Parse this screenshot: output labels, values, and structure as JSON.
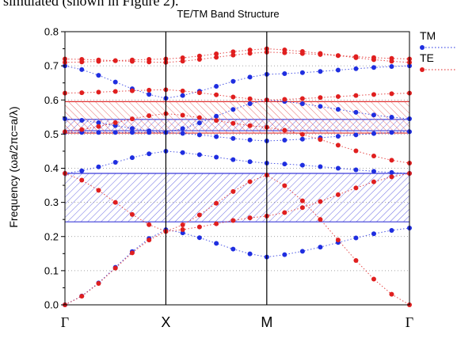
{
  "caption": "simulated (shown in Figure 2).",
  "chart_data": {
    "type": "scatter",
    "title": "TE/TM Band Structure",
    "ylabel": "Frequency (ωa/2πc=a/λ)",
    "xlabel": "",
    "ylim": [
      0,
      0.8
    ],
    "yticks": [
      "0.0",
      "0.1",
      "0.2",
      "0.3",
      "0.4",
      "0.5",
      "0.6",
      "0.7",
      "0.8"
    ],
    "xticks": [
      {
        "label": "Γ",
        "x": 0
      },
      {
        "label": "X",
        "x": 1
      },
      {
        "label": "M",
        "x": 2
      },
      {
        "label": "Γ",
        "x": 3.4142
      }
    ],
    "legend": [
      {
        "name": "TM",
        "color": "#1f2ee0"
      },
      {
        "name": "TE",
        "color": "#e01f1f"
      }
    ],
    "legend_position": "top-right",
    "gaps": [
      {
        "series": "TM",
        "from": 0.243,
        "to": 0.385,
        "color": "#3b3bd9"
      },
      {
        "series": "TM",
        "from": 0.51,
        "to": 0.543,
        "color": "#3b3bd9"
      },
      {
        "series": "TE",
        "from": 0.503,
        "to": 0.595,
        "color": "#e03030"
      }
    ],
    "series": [
      {
        "name": "TM",
        "color": "#1f2ee0",
        "bands": [
          [
            0.0,
            0.0,
            0.22,
            0.22,
            0.14,
            0.14,
            0.243,
            0.243,
            0.225
          ],
          [
            0.385,
            0.385,
            0.45,
            0.45,
            0.415,
            0.415,
            0.46,
            0.46,
            0.385
          ],
          [
            0.505,
            0.505,
            0.505,
            0.505,
            0.48,
            0.48,
            0.47,
            0.47,
            0.507
          ],
          [
            0.545,
            0.545,
            0.505,
            0.505,
            0.6,
            0.6,
            0.68,
            0.68,
            0.545
          ],
          [
            0.7,
            0.7,
            0.605,
            0.605,
            0.675,
            0.675,
            0.68,
            0.68,
            0.7
          ]
        ]
      },
      {
        "name": "TE",
        "color": "#e01f1f",
        "bands": [
          [
            0.0,
            0.0,
            0.215,
            0.215,
            0.38,
            0.38,
            0.5,
            0.5,
            0.0
          ],
          [
            0.385,
            0.385,
            0.215,
            0.215,
            0.26,
            0.26,
            0.4,
            0.4,
            0.385
          ],
          [
            0.507,
            0.507,
            0.56,
            0.56,
            0.52,
            0.52,
            0.505,
            0.505,
            0.415
          ],
          [
            0.62,
            0.62,
            0.63,
            0.63,
            0.6,
            0.6,
            0.6,
            0.6,
            0.62
          ],
          [
            0.71,
            0.71,
            0.72,
            0.72,
            0.75,
            0.75,
            0.72,
            0.72,
            0.71
          ],
          [
            0.72,
            0.72,
            0.71,
            0.71,
            0.74,
            0.74,
            0.72,
            0.72,
            0.72
          ]
        ]
      }
    ]
  }
}
